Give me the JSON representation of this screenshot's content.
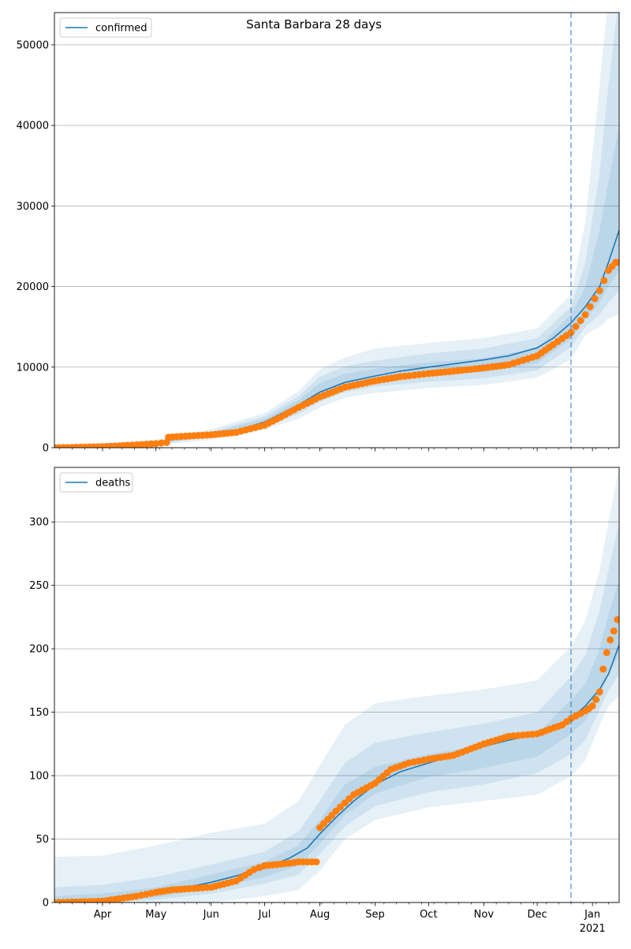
{
  "title": "Santa Barbara 28 days",
  "colors": {
    "model_line": "#1f77b4",
    "observed_points": "#ff7f0e",
    "band": "#1f77b4",
    "forecast_marker": "#1f77b4",
    "grid": "#b0b0b0"
  },
  "x_axis": {
    "month_labels": [
      "Apr",
      "May",
      "Jun",
      "Jul",
      "Aug",
      "Sep",
      "Oct",
      "Nov",
      "Dec",
      "Jan"
    ],
    "year_label": "2021",
    "range": [
      "2020-03-05",
      "2021-01-16"
    ],
    "forecast_start": "2020-12-20"
  },
  "chart_data": [
    {
      "type": "line",
      "panel": "top",
      "legend": "top-left",
      "grid": "horizontal",
      "ylim": [
        0,
        54000
      ],
      "yticks": [
        "0",
        "10000",
        "20000",
        "30000",
        "40000",
        "50000"
      ],
      "ytick_values": [
        0,
        10000,
        20000,
        30000,
        40000,
        50000
      ],
      "series": [
        {
          "name": "confirmed",
          "x": [
            "2020-03-05",
            "2020-04-01",
            "2020-04-15",
            "2020-05-01",
            "2020-05-15",
            "2020-06-01",
            "2020-06-15",
            "2020-07-01",
            "2020-07-10",
            "2020-07-20",
            "2020-08-01",
            "2020-08-15",
            "2020-09-01",
            "2020-09-15",
            "2020-10-01",
            "2020-10-15",
            "2020-11-01",
            "2020-11-15",
            "2020-12-01",
            "2020-12-10",
            "2020-12-20",
            "2020-12-28",
            "2021-01-05",
            "2021-01-10",
            "2021-01-16"
          ],
          "y": [
            0,
            150,
            300,
            550,
            1300,
            1700,
            2100,
            3200,
            4200,
            5300,
            6900,
            8100,
            8900,
            9500,
            10000,
            10400,
            10900,
            11400,
            12400,
            13600,
            15500,
            17500,
            20000,
            23000,
            27000
          ]
        }
      ],
      "observed": {
        "x": [
          "2020-03-05",
          "2020-04-01",
          "2020-04-15",
          "2020-05-01",
          "2020-05-07",
          "2020-05-08",
          "2020-05-15",
          "2020-06-01",
          "2020-06-15",
          "2020-07-01",
          "2020-07-10",
          "2020-07-20",
          "2020-08-01",
          "2020-08-15",
          "2020-09-01",
          "2020-09-15",
          "2020-10-01",
          "2020-10-15",
          "2020-11-01",
          "2020-11-15",
          "2020-12-01",
          "2020-12-10",
          "2020-12-20",
          "2020-12-28",
          "2021-01-05",
          "2021-01-10",
          "2021-01-14",
          "2021-01-16"
        ],
        "y": [
          0,
          120,
          280,
          500,
          650,
          1300,
          1400,
          1600,
          1900,
          2800,
          3800,
          5000,
          6300,
          7500,
          8300,
          8800,
          9200,
          9500,
          9900,
          10300,
          11400,
          12800,
          14300,
          16500,
          19500,
          22000,
          23000,
          23000
        ]
      },
      "bands": [
        {
          "x": [
            "2020-03-05",
            "2020-05-01",
            "2020-06-01",
            "2020-07-01",
            "2020-07-20",
            "2020-08-01",
            "2020-08-15",
            "2020-09-01",
            "2020-10-01",
            "2020-11-01",
            "2020-12-01",
            "2020-12-20",
            "2020-12-28",
            "2021-01-05",
            "2021-01-10",
            "2021-01-16"
          ],
          "low": [
            0,
            300,
            1000,
            2200,
            3600,
            5000,
            6200,
            6800,
            7400,
            7800,
            8700,
            11000,
            14000,
            15000,
            16000,
            16500
          ],
          "high": [
            300,
            1000,
            2300,
            4300,
            7000,
            9700,
            11200,
            12300,
            13000,
            13600,
            14800,
            19000,
            28000,
            45000,
            56000,
            60000
          ]
        },
        {
          "x": [
            "2020-03-05",
            "2020-05-01",
            "2020-06-01",
            "2020-07-01",
            "2020-07-20",
            "2020-08-01",
            "2020-08-15",
            "2020-09-01",
            "2020-10-01",
            "2020-11-01",
            "2020-12-01",
            "2020-12-20",
            "2020-12-28",
            "2021-01-05",
            "2021-01-10",
            "2021-01-16"
          ],
          "low": [
            0,
            400,
            1300,
            2600,
            4200,
            5700,
            6900,
            7600,
            8200,
            8600,
            9600,
            12500,
            15000,
            16500,
            18000,
            19500
          ],
          "high": [
            200,
            800,
            2000,
            3900,
            6400,
            8800,
            10100,
            10800,
            11700,
            12300,
            13600,
            17500,
            23000,
            34000,
            45000,
            56000
          ]
        },
        {
          "x": [
            "2020-03-05",
            "2020-05-01",
            "2020-06-01",
            "2020-07-01",
            "2020-07-20",
            "2020-08-01",
            "2020-08-15",
            "2020-09-01",
            "2020-10-01",
            "2020-11-01",
            "2020-12-01",
            "2020-12-20",
            "2020-12-28",
            "2021-01-05",
            "2021-01-10",
            "2021-01-16"
          ],
          "low": [
            0,
            450,
            1500,
            2900,
            4700,
            6200,
            7400,
            8200,
            8900,
            9400,
            10500,
            13500,
            16000,
            18000,
            20000,
            22000
          ],
          "high": [
            150,
            700,
            1850,
            3600,
            5900,
            8000,
            9200,
            9800,
            10600,
            11100,
            12400,
            16500,
            20000,
            27000,
            33000,
            40000
          ]
        }
      ]
    },
    {
      "type": "line",
      "panel": "bottom",
      "legend": "top-left",
      "grid": "horizontal",
      "ylim": [
        0,
        343
      ],
      "yticks": [
        "0",
        "50",
        "100",
        "150",
        "200",
        "250",
        "300"
      ],
      "ytick_values": [
        0,
        50,
        100,
        150,
        200,
        250,
        300
      ],
      "series": [
        {
          "name": "deaths",
          "x": [
            "2020-03-05",
            "2020-04-01",
            "2020-05-01",
            "2020-06-01",
            "2020-06-15",
            "2020-07-01",
            "2020-07-15",
            "2020-07-25",
            "2020-08-01",
            "2020-08-10",
            "2020-08-20",
            "2020-09-01",
            "2020-09-15",
            "2020-10-01",
            "2020-10-15",
            "2020-11-01",
            "2020-11-15",
            "2020-12-01",
            "2020-12-20",
            "2020-12-28",
            "2021-01-05",
            "2021-01-10",
            "2021-01-16"
          ],
          "y": [
            0,
            2,
            7,
            16,
            21,
            27,
            35,
            43,
            54,
            67,
            80,
            93,
            103,
            110,
            116,
            123,
            128,
            133,
            145,
            155,
            168,
            180,
            203
          ]
        }
      ],
      "observed": {
        "x": [
          "2020-03-05",
          "2020-04-01",
          "2020-04-20",
          "2020-05-01",
          "2020-05-10",
          "2020-06-01",
          "2020-06-15",
          "2020-06-25",
          "2020-07-01",
          "2020-07-15",
          "2020-07-20",
          "2020-07-30",
          "2020-08-01",
          "2020-08-10",
          "2020-08-20",
          "2020-09-01",
          "2020-09-10",
          "2020-09-20",
          "2020-10-01",
          "2020-10-15",
          "2020-11-01",
          "2020-11-15",
          "2020-12-01",
          "2020-12-15",
          "2020-12-20",
          "2020-12-28",
          "2021-01-01",
          "2021-01-03",
          "2021-01-05",
          "2021-01-07",
          "2021-01-09",
          "2021-01-11",
          "2021-01-13",
          "2021-01-15"
        ],
        "y": [
          0,
          1,
          5,
          8,
          10,
          12,
          17,
          26,
          29,
          31,
          32,
          32,
          59,
          72,
          85,
          94,
          105,
          110,
          113,
          116,
          125,
          131,
          133,
          140,
          145,
          151,
          155,
          160,
          166,
          184,
          197,
          207,
          214,
          223
        ]
      },
      "bands": [
        {
          "x": [
            "2020-03-05",
            "2020-04-01",
            "2020-05-01",
            "2020-06-01",
            "2020-07-01",
            "2020-07-20",
            "2020-08-01",
            "2020-08-15",
            "2020-09-01",
            "2020-10-01",
            "2020-11-01",
            "2020-12-01",
            "2020-12-20",
            "2020-12-28",
            "2021-01-05",
            "2021-01-10",
            "2021-01-16"
          ],
          "low": [
            0,
            0,
            0,
            0,
            5,
            10,
            25,
            50,
            65,
            75,
            80,
            85,
            100,
            112,
            140,
            155,
            163
          ],
          "high": [
            36,
            37,
            45,
            55,
            62,
            80,
            108,
            140,
            157,
            163,
            168,
            175,
            202,
            222,
            262,
            300,
            343
          ]
        },
        {
          "x": [
            "2020-03-05",
            "2020-04-01",
            "2020-05-01",
            "2020-06-01",
            "2020-07-01",
            "2020-07-20",
            "2020-08-01",
            "2020-08-15",
            "2020-09-01",
            "2020-10-01",
            "2020-11-01",
            "2020-12-01",
            "2020-12-20",
            "2020-12-28",
            "2021-01-05",
            "2021-01-10",
            "2021-01-16"
          ],
          "low": [
            0,
            0,
            2,
            7,
            15,
            22,
            38,
            60,
            76,
            87,
            93,
            102,
            117,
            128,
            152,
            167,
            180
          ],
          "high": [
            12,
            14,
            20,
            30,
            40,
            56,
            80,
            110,
            126,
            134,
            141,
            150,
            178,
            195,
            230,
            262,
            300
          ]
        },
        {
          "x": [
            "2020-03-05",
            "2020-04-01",
            "2020-05-01",
            "2020-06-01",
            "2020-07-01",
            "2020-07-20",
            "2020-08-01",
            "2020-08-15",
            "2020-09-01",
            "2020-10-01",
            "2020-11-01",
            "2020-12-01",
            "2020-12-20",
            "2020-12-28",
            "2021-01-05",
            "2021-01-10",
            "2021-01-16"
          ],
          "low": [
            0,
            0,
            4,
            11,
            20,
            29,
            46,
            69,
            86,
            99,
            106,
            115,
            133,
            143,
            163,
            180,
            195
          ],
          "high": [
            5,
            7,
            12,
            22,
            32,
            45,
            65,
            93,
            107,
            117,
            124,
            133,
            160,
            172,
            200,
            227,
            255
          ]
        }
      ]
    }
  ]
}
